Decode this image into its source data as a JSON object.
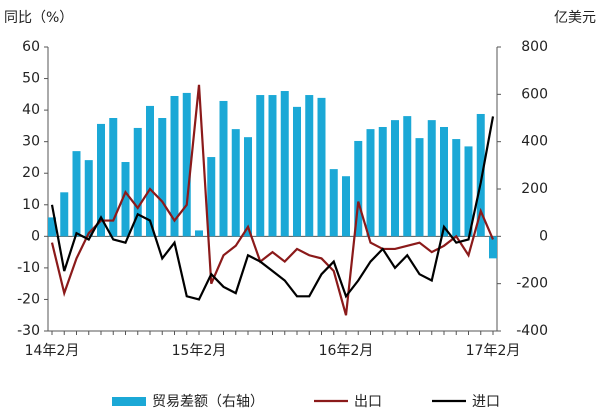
{
  "chart_data": {
    "type": "bar-line",
    "y_label": "同比（%）",
    "y2_label": "亿美元",
    "categories": [
      "14年2月",
      null,
      null,
      null,
      null,
      null,
      null,
      null,
      null,
      null,
      null,
      null,
      "15年2月",
      null,
      null,
      null,
      null,
      null,
      null,
      null,
      null,
      null,
      null,
      null,
      "16年2月",
      null,
      null,
      null,
      null,
      null,
      null,
      null,
      null,
      null,
      null,
      null,
      "17年2月"
    ],
    "series": [
      {
        "name": "贸易差额（右轴）",
        "type": "bar",
        "axis": "y2",
        "color": "#1ba8d6",
        "values": [
          80,
          186,
          360,
          322,
          475,
          500,
          314,
          458,
          551,
          500,
          593,
          606,
          25,
          335,
          572,
          453,
          419,
          597,
          597,
          614,
          547,
          597,
          585,
          284,
          254,
          403,
          453,
          462,
          491,
          508,
          415,
          491,
          462,
          411,
          380,
          517,
          -93
        ]
      },
      {
        "name": "出口",
        "type": "line",
        "color": "#8b1a1a",
        "values": [
          -2,
          -18,
          -7,
          1,
          5,
          5,
          14,
          9,
          15,
          11,
          5,
          10,
          48,
          -15,
          -6,
          -3,
          3,
          -8,
          -5,
          -8,
          -4,
          -6,
          -7,
          -11,
          -25,
          11,
          -2,
          -4,
          -4,
          -3,
          -2,
          -5,
          -3,
          0,
          -6,
          8,
          -1
        ]
      },
      {
        "name": "进口",
        "type": "line",
        "color": "#000000",
        "values": [
          10,
          -11,
          1,
          -1,
          6,
          -1,
          -2,
          7,
          5,
          -7,
          -2,
          -19,
          -20,
          -12,
          -16,
          -18,
          -6,
          -8,
          -11,
          -14,
          -19,
          -19,
          -12,
          -8,
          -19,
          -14,
          -8,
          -4,
          -10,
          -6,
          -12,
          -14,
          3,
          -2,
          -1,
          17,
          38
        ]
      }
    ],
    "ylim": [
      -30,
      60
    ],
    "yticks": [
      -30,
      -20,
      -10,
      0,
      10,
      20,
      30,
      40,
      50,
      60
    ],
    "y2lim": [
      -400,
      800
    ],
    "y2ticks": [
      -400,
      -200,
      0,
      200,
      400,
      600,
      800
    ]
  }
}
